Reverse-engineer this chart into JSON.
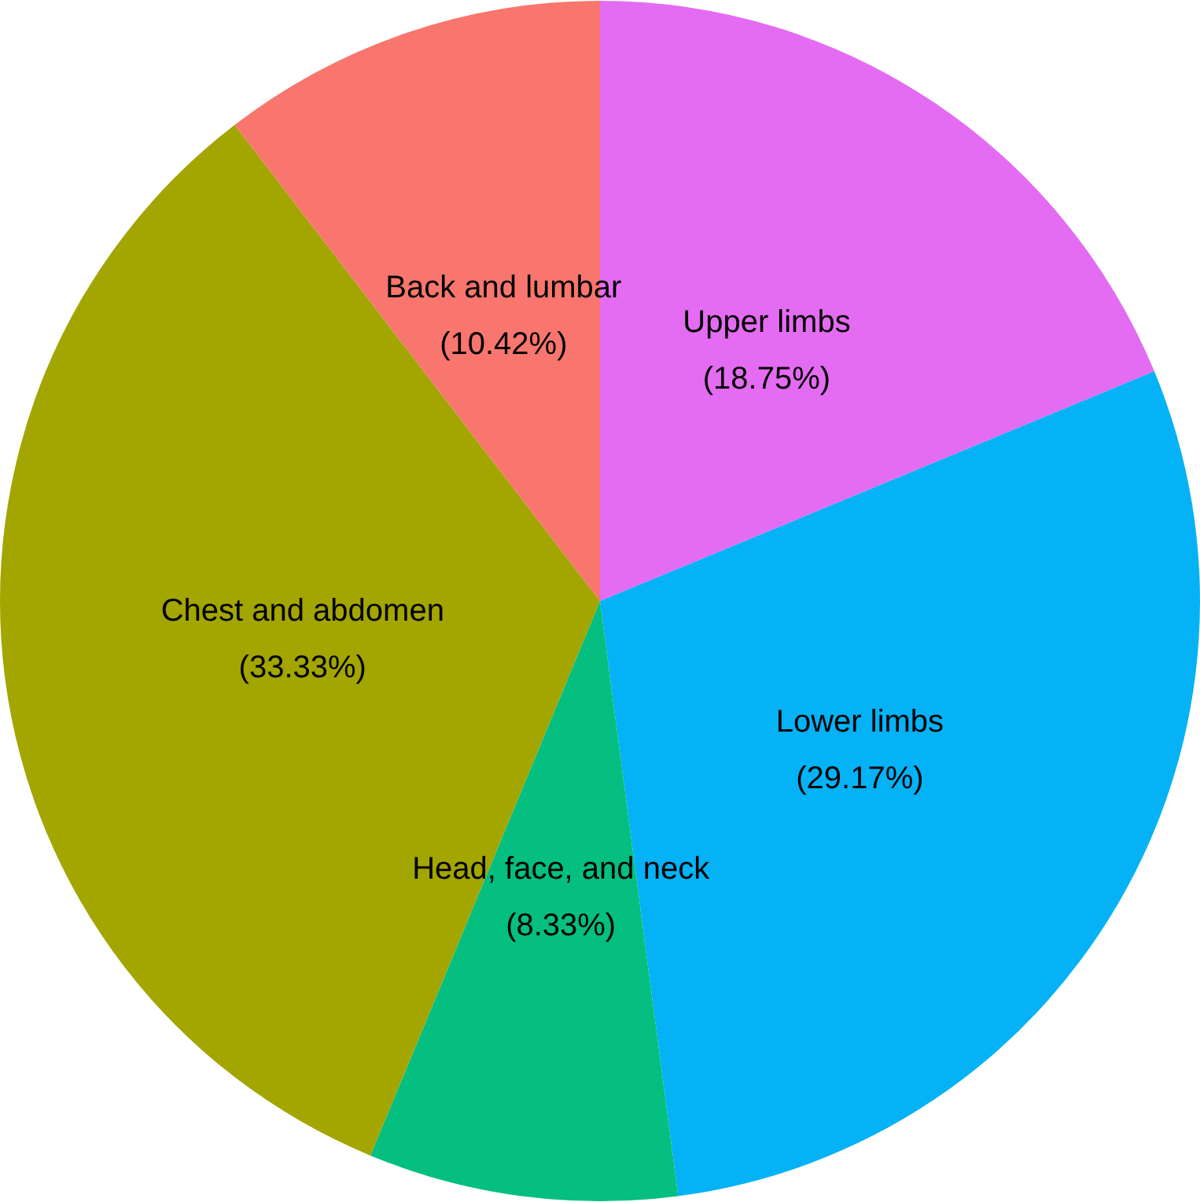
{
  "chart_data": {
    "type": "pie",
    "categories": [
      "Upper limbs",
      "Lower limbs",
      "Head, face, and neck",
      "Chest and abdomen",
      "Back and lumbar"
    ],
    "values": [
      18.75,
      29.17,
      8.33,
      33.33,
      10.42
    ],
    "colors": [
      "#e46cf2",
      "#05b2f5",
      "#04bf7f",
      "#a3a500",
      "#f8766d"
    ],
    "value_labels": [
      "(18.75%)",
      "(29.17%)",
      "(8.33%)",
      "(33.33%)",
      "(10.42%)"
    ],
    "legend": false
  }
}
